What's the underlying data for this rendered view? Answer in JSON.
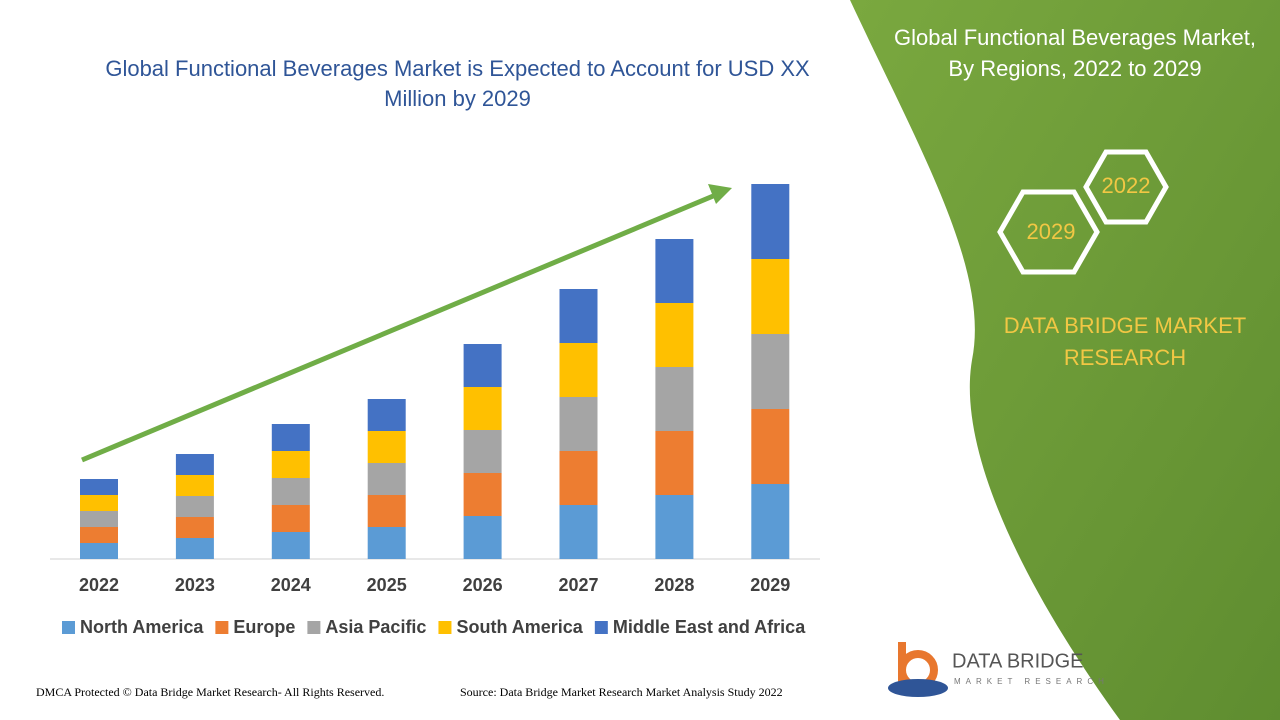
{
  "chart_data": {
    "type": "stacked-bar",
    "title": "Global Functional Beverages Market is Expected to Account for USD XX Million by 2029",
    "categories": [
      "2022",
      "2023",
      "2024",
      "2025",
      "2026",
      "2027",
      "2028",
      "2029"
    ],
    "series": [
      {
        "name": "North America",
        "color": "#5b9bd5",
        "values": [
          16,
          21,
          27,
          32,
          43,
          54,
          64,
          75
        ]
      },
      {
        "name": "Europe",
        "color": "#ed7d31",
        "values": [
          16,
          21,
          27,
          32,
          43,
          54,
          64,
          75
        ]
      },
      {
        "name": "Asia Pacific",
        "color": "#a5a5a5",
        "values": [
          16,
          21,
          27,
          32,
          43,
          54,
          64,
          75
        ]
      },
      {
        "name": "South America",
        "color": "#ffc000",
        "values": [
          16,
          21,
          27,
          32,
          43,
          54,
          64,
          75
        ]
      },
      {
        "name": "Middle East and Africa",
        "color": "#4472c4",
        "values": [
          16,
          21,
          27,
          32,
          43,
          54,
          64,
          75
        ]
      }
    ]
  },
  "panel": {
    "title": "Global Functional Beverages Market, By Regions, 2022 to 2029",
    "hex_top": "2022",
    "hex_bottom": "2029",
    "brand": "DATA BRIDGE MARKET RESEARCH"
  },
  "logo": {
    "name": "DATA BRIDGE",
    "tagline": "MARKET RESEARCH"
  },
  "footer": {
    "left": "DMCA Protected © Data Bridge Market Research- All Rights Reserved.",
    "right": "Source: Data Bridge Market Research Market Analysis Study 2022"
  }
}
